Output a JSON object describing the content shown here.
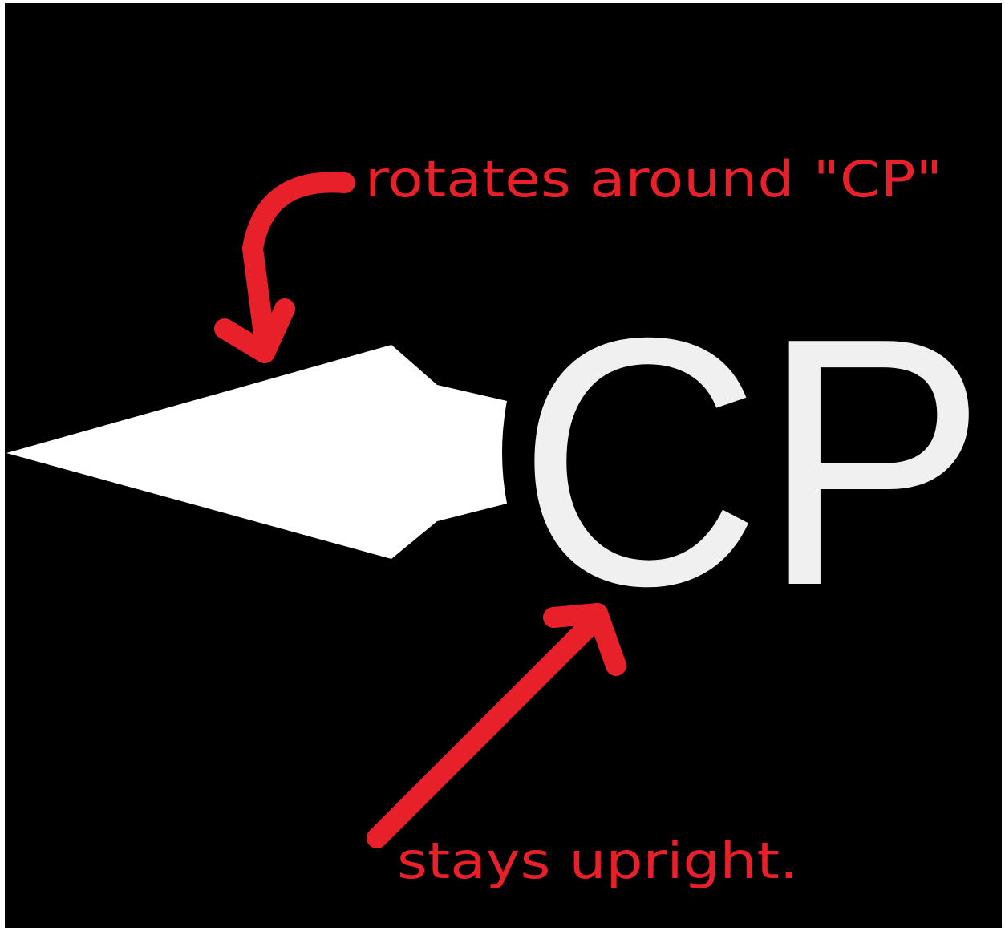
{
  "label": "CP",
  "annotations": [
    "rotates around \"CP\"",
    "stays upright."
  ]
}
